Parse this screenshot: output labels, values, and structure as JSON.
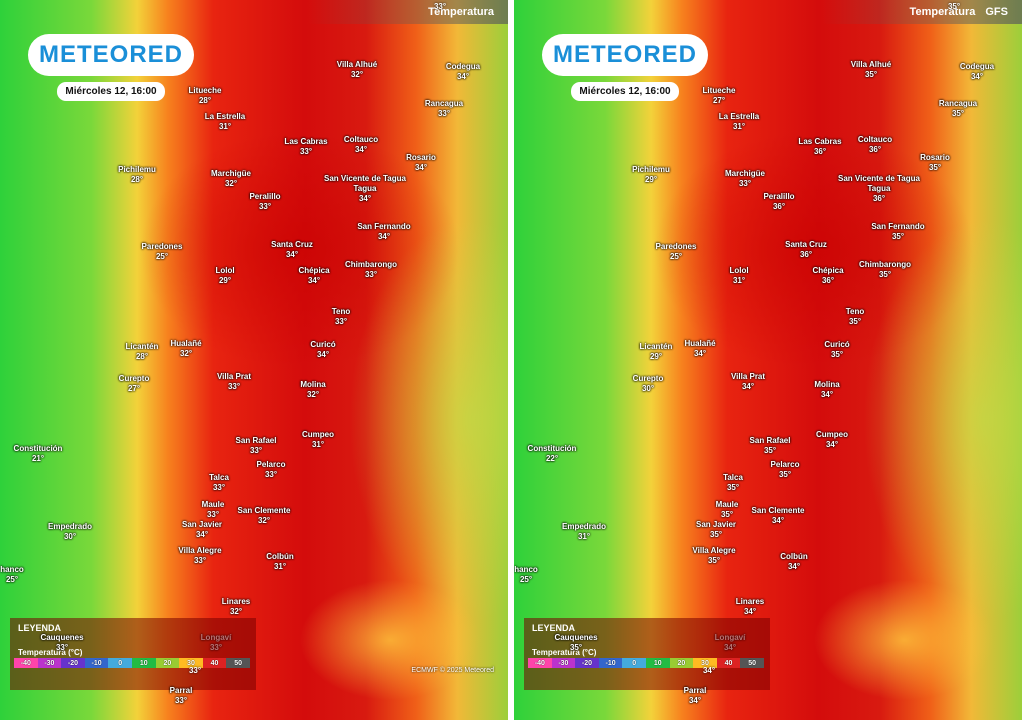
{
  "panels": [
    {
      "logo": "METEORED",
      "date": "Miércoles 12, 16:00",
      "layer": "Temperatura",
      "top_value": "33°",
      "cities": [
        {
          "name": "Litueche",
          "temp": "28°"
        },
        {
          "name": "Villa Alhué",
          "temp": "32°"
        },
        {
          "name": "Codegua",
          "temp": "34°"
        },
        {
          "name": "La Estrella",
          "temp": "31°"
        },
        {
          "name": "Rancagua",
          "temp": "33°"
        },
        {
          "name": "Las Cabras",
          "temp": "33°"
        },
        {
          "name": "Coltauco",
          "temp": "34°"
        },
        {
          "name": "Rosario",
          "temp": "34°"
        },
        {
          "name": "Pichilemu",
          "temp": "28°"
        },
        {
          "name": "Marchigüe",
          "temp": "32°"
        },
        {
          "name": "San Vicente de Tagua Tagua",
          "temp": "34°"
        },
        {
          "name": "Peralillo",
          "temp": "33°"
        },
        {
          "name": "San Fernando",
          "temp": "34°"
        },
        {
          "name": "Paredones",
          "temp": "25°"
        },
        {
          "name": "Santa Cruz",
          "temp": "34°"
        },
        {
          "name": "Lolol",
          "temp": "29°"
        },
        {
          "name": "Chépica",
          "temp": "34°"
        },
        {
          "name": "Chimbarongo",
          "temp": "33°"
        },
        {
          "name": "Teno",
          "temp": "33°"
        },
        {
          "name": "Licantén",
          "temp": "28°"
        },
        {
          "name": "Hualañé",
          "temp": "32°"
        },
        {
          "name": "Curicó",
          "temp": "34°"
        },
        {
          "name": "Curepto",
          "temp": "27°"
        },
        {
          "name": "Villa Prat",
          "temp": "33°"
        },
        {
          "name": "Molina",
          "temp": "32°"
        },
        {
          "name": "Constitución",
          "temp": "21°"
        },
        {
          "name": "San Rafael",
          "temp": "33°"
        },
        {
          "name": "Cumpeo",
          "temp": "31°"
        },
        {
          "name": "Pelarco",
          "temp": "33°"
        },
        {
          "name": "Talca",
          "temp": "33°"
        },
        {
          "name": "Maule",
          "temp": "33°"
        },
        {
          "name": "San Clemente",
          "temp": "32°"
        },
        {
          "name": "Empedrado",
          "temp": "30°"
        },
        {
          "name": "San Javier",
          "temp": "34°"
        },
        {
          "name": "Villa Alegre",
          "temp": "33°"
        },
        {
          "name": "Colbún",
          "temp": "31°"
        },
        {
          "name": "hanco",
          "temp": "25°"
        },
        {
          "name": "Linares",
          "temp": "32°"
        },
        {
          "name": "Cauquenes",
          "temp": "33°"
        },
        {
          "name": "Longaví",
          "temp": "33°"
        },
        {
          "name": "Parral",
          "temp": "33°"
        }
      ],
      "extra_value": "33°",
      "legend": {
        "title": "LEYENDA",
        "scale_title": "Temperatura (°C)",
        "scale": [
          -40,
          -30,
          -20,
          -10,
          0,
          10,
          20,
          30,
          40,
          50
        ]
      },
      "credit": "ECMWF © 2025 Meteored"
    },
    {
      "logo": "METEORED",
      "date": "Miércoles 12, 16:00",
      "layer": "Temperatura",
      "model": "GFS",
      "top_value": "35°",
      "cities": [
        {
          "name": "Litueche",
          "temp": "27°"
        },
        {
          "name": "Villa Alhué",
          "temp": "35°"
        },
        {
          "name": "Codegua",
          "temp": "34°"
        },
        {
          "name": "La Estrella",
          "temp": "31°"
        },
        {
          "name": "Rancagua",
          "temp": "35°"
        },
        {
          "name": "Las Cabras",
          "temp": "36°"
        },
        {
          "name": "Coltauco",
          "temp": "36°"
        },
        {
          "name": "Rosario",
          "temp": "35°"
        },
        {
          "name": "Pichilemu",
          "temp": "29°"
        },
        {
          "name": "Marchigüe",
          "temp": "33°"
        },
        {
          "name": "San Vicente de Tagua Tagua",
          "temp": "36°"
        },
        {
          "name": "Peralillo",
          "temp": "36°"
        },
        {
          "name": "San Fernando",
          "temp": "35°"
        },
        {
          "name": "Paredones",
          "temp": "25°"
        },
        {
          "name": "Santa Cruz",
          "temp": "36°"
        },
        {
          "name": "Lolol",
          "temp": "31°"
        },
        {
          "name": "Chépica",
          "temp": "36°"
        },
        {
          "name": "Chimbarongo",
          "temp": "35°"
        },
        {
          "name": "Teno",
          "temp": "35°"
        },
        {
          "name": "Licantén",
          "temp": "29°"
        },
        {
          "name": "Hualañé",
          "temp": "34°"
        },
        {
          "name": "Curicó",
          "temp": "35°"
        },
        {
          "name": "Curepto",
          "temp": "30°"
        },
        {
          "name": "Villa Prat",
          "temp": "34°"
        },
        {
          "name": "Molina",
          "temp": "34°"
        },
        {
          "name": "Constitución",
          "temp": "22°"
        },
        {
          "name": "San Rafael",
          "temp": "35°"
        },
        {
          "name": "Cumpeo",
          "temp": "34°"
        },
        {
          "name": "Pelarco",
          "temp": "35°"
        },
        {
          "name": "Talca",
          "temp": "35°"
        },
        {
          "name": "Maule",
          "temp": "35°"
        },
        {
          "name": "San Clemente",
          "temp": "34°"
        },
        {
          "name": "Empedrado",
          "temp": "31°"
        },
        {
          "name": "San Javier",
          "temp": "35°"
        },
        {
          "name": "Villa Alegre",
          "temp": "35°"
        },
        {
          "name": "Colbún",
          "temp": "34°"
        },
        {
          "name": "hanco",
          "temp": "25°"
        },
        {
          "name": "Linares",
          "temp": "34°"
        },
        {
          "name": "Cauquenes",
          "temp": "35°"
        },
        {
          "name": "Longaví",
          "temp": "34°"
        },
        {
          "name": "Parral",
          "temp": "34°"
        }
      ],
      "extra_value": "34°",
      "legend": {
        "title": "LEYENDA",
        "scale_title": "Temperatura (°C)",
        "scale": [
          -40,
          -30,
          -20,
          -10,
          0,
          10,
          20,
          30,
          40,
          50
        ]
      }
    }
  ]
}
